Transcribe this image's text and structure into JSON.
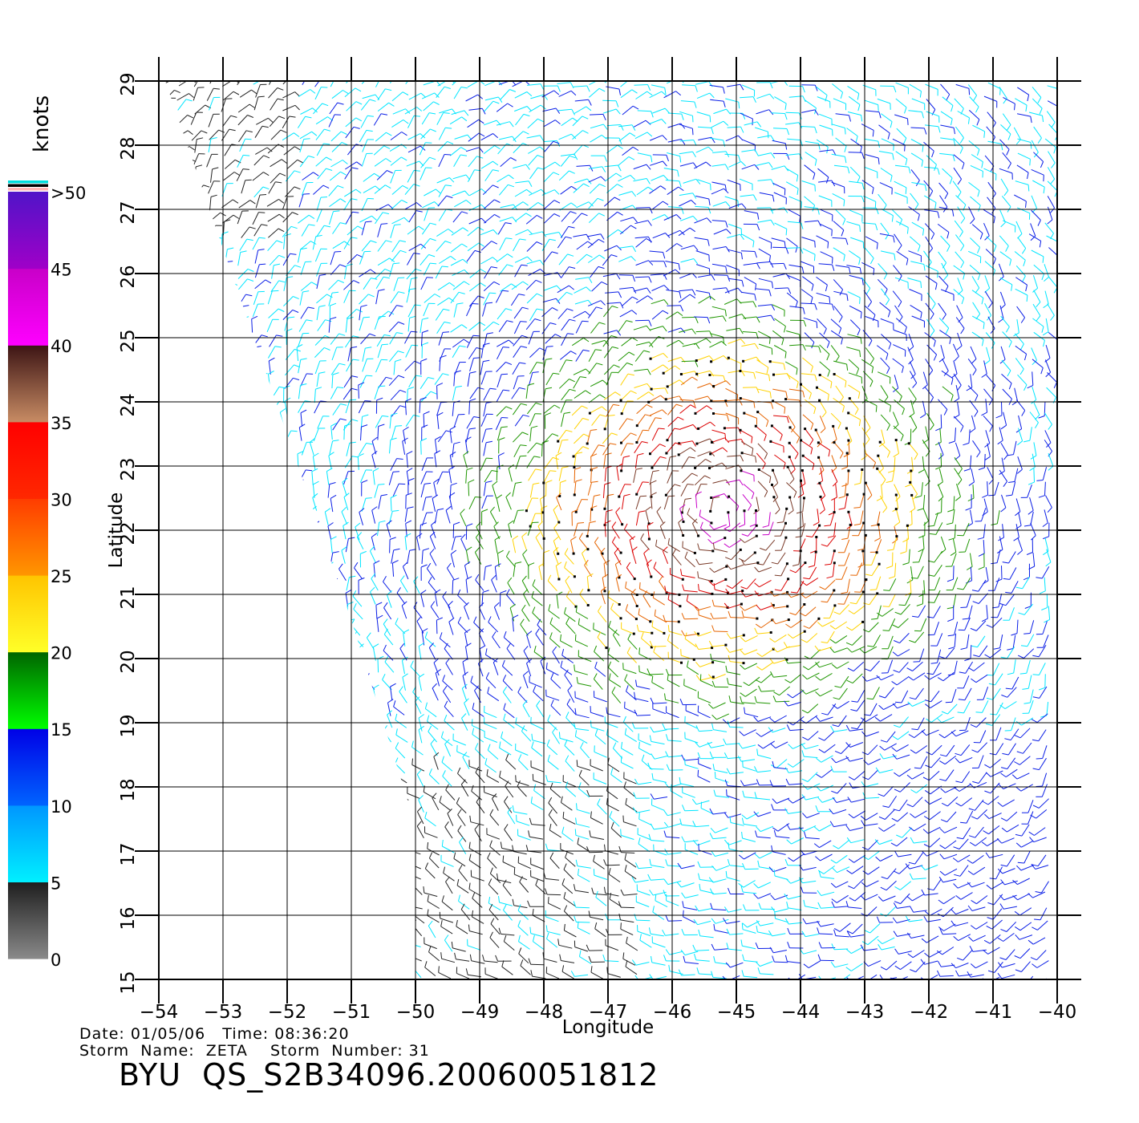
{
  "map": {
    "lon_range": [
      -54,
      -40
    ],
    "lat_range": [
      15,
      29
    ],
    "xlabel": "Longitude",
    "ylabel": "Latitude",
    "lon_ticks": [
      "−54",
      "−53",
      "−52",
      "−51",
      "−50",
      "−49",
      "−48",
      "−47",
      "−46",
      "−45",
      "−44",
      "−43",
      "−42",
      "−41",
      "−40"
    ],
    "lat_ticks": [
      "15",
      "16",
      "17",
      "18",
      "19",
      "20",
      "21",
      "22",
      "23",
      "24",
      "25",
      "26",
      "27",
      "28",
      "29"
    ],
    "grid": true,
    "swath_edge": [
      [
        -53.9,
        29
      ],
      [
        -51.0,
        20.6
      ],
      [
        -50.0,
        17.4
      ],
      [
        -50.0,
        15.0
      ]
    ]
  },
  "colorbar": {
    "unit": "knots",
    "labels": [
      "0",
      "5",
      "10",
      "15",
      "20",
      "25",
      "30",
      "35",
      "40",
      "45",
      ">50"
    ],
    "bands": [
      {
        "from": 0,
        "to": 5,
        "top": "#1e1e1e",
        "bottom": "#8a8a8a"
      },
      {
        "from": 5,
        "to": 10,
        "top": "#0096ff",
        "bottom": "#00f0ff"
      },
      {
        "from": 10,
        "to": 15,
        "top": "#0000e6",
        "bottom": "#0064ff"
      },
      {
        "from": 15,
        "to": 20,
        "top": "#006400",
        "bottom": "#00ff00"
      },
      {
        "from": 20,
        "to": 25,
        "top": "#ffc400",
        "bottom": "#ffff28"
      },
      {
        "from": 25,
        "to": 30,
        "top": "#ff3c00",
        "bottom": "#ff9600"
      },
      {
        "from": 30,
        "to": 35,
        "top": "#ff0000",
        "bottom": "#ff2800"
      },
      {
        "from": 35,
        "to": 40,
        "top": "#3c1414",
        "bottom": "#c88c64"
      },
      {
        "from": 40,
        "to": 45,
        "top": "#c800c8",
        "bottom": "#ff00ff"
      },
      {
        "from": 45,
        "to": 50,
        "top": "#5014c8",
        "bottom": "#a000c8"
      }
    ],
    "overflow_stripes": [
      "#00dcdc",
      "#000000",
      "#ffb4b4"
    ]
  },
  "wind_field": {
    "storm_center": [
      -45.2,
      22.3
    ],
    "colors_by_speed": [
      "#222222",
      "#00e6ff",
      "#0a1ee6",
      "#1e9600",
      "#ffd200",
      "#e66400",
      "#dc0000",
      "#7a3a28",
      "#c800c8",
      "#6a1ec8"
    ]
  },
  "footer": {
    "line1": "Date: 01/05/06   Time: 08:36:20",
    "line2": "Storm  Name:  ZETA    Storm  Number: 31",
    "product": "BYU  QS_S2B34096.20060051812"
  }
}
